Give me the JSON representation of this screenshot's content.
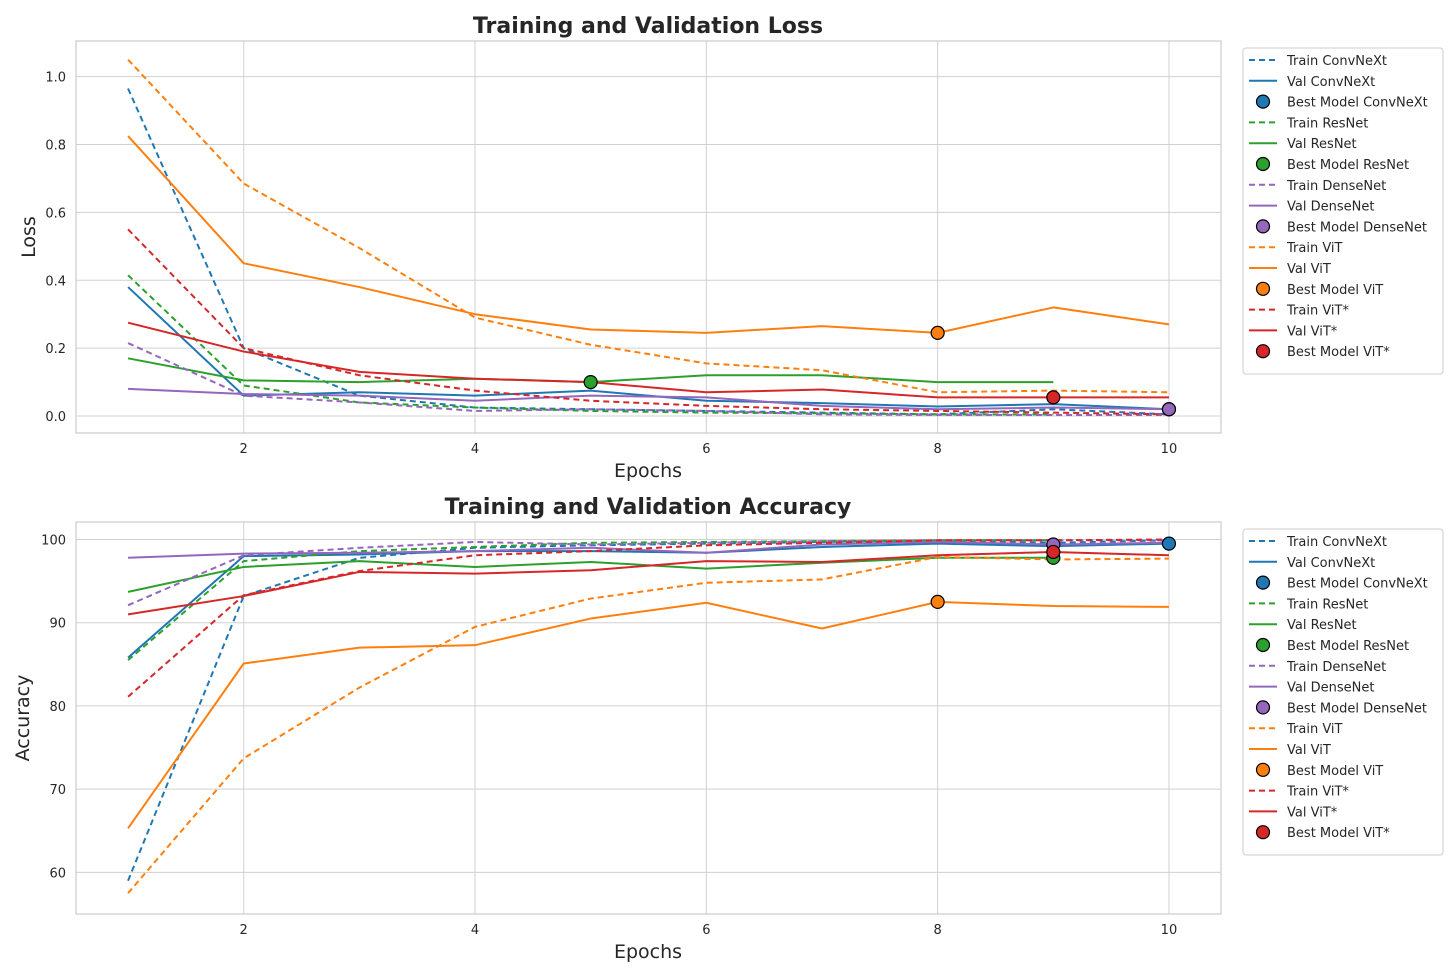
{
  "chart_data": [
    {
      "type": "line",
      "title": "Training and Validation Loss",
      "xlabel": "Epochs",
      "ylabel": "Loss",
      "xlim": [
        0.55,
        10.45
      ],
      "ylim": [
        -0.05,
        1.105
      ],
      "xticks": [
        2,
        4,
        6,
        8,
        10
      ],
      "yticks": [
        0.0,
        0.2,
        0.4,
        0.6,
        0.8,
        1.0
      ],
      "ytick_labels": [
        "0.0",
        "0.2",
        "0.4",
        "0.6",
        "0.8",
        "1.0"
      ],
      "grid": true,
      "legend_position": "outside right, top",
      "series": [
        {
          "name": "Train ConvNeXt",
          "model": "ConvNeXt",
          "style": "dashed",
          "color": "#1f77b4",
          "x": [
            1,
            2,
            3,
            4,
            5,
            6,
            7,
            8,
            9,
            10
          ],
          "y": [
            0.965,
            0.2,
            0.06,
            0.025,
            0.02,
            0.015,
            0.01,
            0.005,
            0.02,
            0.005
          ]
        },
        {
          "name": "Val ConvNeXt",
          "model": "ConvNeXt",
          "style": "solid",
          "color": "#1f77b4",
          "x": [
            1,
            2,
            3,
            4,
            5,
            6,
            7,
            8,
            9,
            10
          ],
          "y": [
            0.38,
            0.06,
            0.07,
            0.06,
            0.075,
            0.045,
            0.038,
            0.028,
            0.035,
            0.02
          ]
        },
        {
          "name": "Best Model ConvNeXt",
          "model": "ConvNeXt",
          "style": "marker",
          "color": "#1f77b4",
          "x": [
            10
          ],
          "y": [
            0.02
          ]
        },
        {
          "name": "Train ResNet",
          "model": "ResNet",
          "style": "dashed",
          "color": "#2ca02c",
          "x": [
            1,
            2,
            3,
            4,
            5,
            6,
            7,
            8,
            9
          ],
          "y": [
            0.415,
            0.09,
            0.04,
            0.025,
            0.015,
            0.01,
            0.008,
            0.005,
            0.005
          ]
        },
        {
          "name": "Val ResNet",
          "model": "ResNet",
          "style": "solid",
          "color": "#2ca02c",
          "x": [
            1,
            2,
            3,
            4,
            5,
            6,
            7,
            8,
            9
          ],
          "y": [
            0.17,
            0.105,
            0.1,
            0.11,
            0.1,
            0.12,
            0.12,
            0.1,
            0.1
          ]
        },
        {
          "name": "Best Model ResNet",
          "model": "ResNet",
          "style": "marker",
          "color": "#2ca02c",
          "x": [
            5
          ],
          "y": [
            0.1
          ]
        },
        {
          "name": "Train DenseNet",
          "model": "DenseNet",
          "style": "dashed",
          "color": "#9467bd",
          "x": [
            1,
            2,
            3,
            4,
            5,
            6,
            7,
            8,
            9,
            10
          ],
          "y": [
            0.215,
            0.06,
            0.04,
            0.015,
            0.02,
            0.015,
            0.005,
            0.003,
            0.003,
            0.003
          ]
        },
        {
          "name": "Val DenseNet",
          "model": "DenseNet",
          "style": "solid",
          "color": "#9467bd",
          "x": [
            1,
            2,
            3,
            4,
            5,
            6,
            7,
            8,
            9,
            10
          ],
          "y": [
            0.08,
            0.065,
            0.06,
            0.045,
            0.06,
            0.055,
            0.03,
            0.02,
            0.025,
            0.02
          ]
        },
        {
          "name": "Best Model DenseNet",
          "model": "DenseNet",
          "style": "marker",
          "color": "#9467bd",
          "x": [
            10
          ],
          "y": [
            0.02
          ]
        },
        {
          "name": "Train ViT",
          "model": "ViT",
          "style": "dashed",
          "color": "#ff7f0e",
          "x": [
            1,
            2,
            3,
            4,
            5,
            6,
            7,
            8,
            9,
            10
          ],
          "y": [
            1.05,
            0.685,
            0.495,
            0.29,
            0.21,
            0.155,
            0.135,
            0.07,
            0.075,
            0.07
          ]
        },
        {
          "name": "Val ViT",
          "model": "ViT",
          "style": "solid",
          "color": "#ff7f0e",
          "x": [
            1,
            2,
            3,
            4,
            5,
            6,
            7,
            8,
            9,
            10
          ],
          "y": [
            0.825,
            0.45,
            0.38,
            0.3,
            0.255,
            0.245,
            0.265,
            0.245,
            0.32,
            0.27
          ]
        },
        {
          "name": "Best Model ViT",
          "model": "ViT",
          "style": "marker",
          "color": "#ff7f0e",
          "x": [
            8
          ],
          "y": [
            0.245
          ]
        },
        {
          "name": "Train ViT*",
          "model": "ViT*",
          "style": "dashed",
          "color": "#d62728",
          "x": [
            1,
            2,
            3,
            4,
            5,
            6,
            7,
            8,
            9,
            10
          ],
          "y": [
            0.55,
            0.2,
            0.12,
            0.075,
            0.045,
            0.03,
            0.02,
            0.015,
            0.01,
            0.005
          ]
        },
        {
          "name": "Val ViT*",
          "model": "ViT*",
          "style": "solid",
          "color": "#d62728",
          "x": [
            1,
            2,
            3,
            4,
            5,
            6,
            7,
            8,
            9,
            10
          ],
          "y": [
            0.275,
            0.19,
            0.13,
            0.11,
            0.1,
            0.07,
            0.078,
            0.055,
            0.055,
            0.055
          ]
        },
        {
          "name": "Best Model ViT*",
          "model": "ViT*",
          "style": "marker",
          "color": "#d62728",
          "x": [
            9
          ],
          "y": [
            0.055
          ]
        }
      ]
    },
    {
      "type": "line",
      "title": "Training and Validation Accuracy",
      "xlabel": "Epochs",
      "ylabel": "Accuracy",
      "xlim": [
        0.55,
        10.45
      ],
      "ylim": [
        55,
        102.1
      ],
      "xticks": [
        2,
        4,
        6,
        8,
        10
      ],
      "yticks": [
        60,
        70,
        80,
        90,
        100
      ],
      "ytick_labels": [
        "60",
        "70",
        "80",
        "90",
        "100"
      ],
      "grid": true,
      "legend_position": "outside right, top",
      "series": [
        {
          "name": "Train ConvNeXt",
          "model": "ConvNeXt",
          "style": "dashed",
          "color": "#1f77b4",
          "x": [
            1,
            2,
            3,
            4,
            5,
            6,
            7,
            8,
            9,
            10
          ],
          "y": [
            59.0,
            93.2,
            97.8,
            99.0,
            99.3,
            99.5,
            99.7,
            99.9,
            99.6,
            99.9
          ]
        },
        {
          "name": "Val ConvNeXt",
          "model": "ConvNeXt",
          "style": "solid",
          "color": "#1f77b4",
          "x": [
            1,
            2,
            3,
            4,
            5,
            6,
            7,
            8,
            9,
            10
          ],
          "y": [
            85.8,
            98.0,
            98.2,
            98.6,
            98.6,
            98.4,
            99.1,
            99.5,
            99.2,
            99.5
          ]
        },
        {
          "name": "Best Model ConvNeXt",
          "model": "ConvNeXt",
          "style": "marker",
          "color": "#1f77b4",
          "x": [
            10
          ],
          "y": [
            99.5
          ]
        },
        {
          "name": "Train ResNet",
          "model": "ResNet",
          "style": "dashed",
          "color": "#2ca02c",
          "x": [
            1,
            2,
            3,
            4,
            5,
            6,
            7,
            8,
            9
          ],
          "y": [
            85.5,
            97.4,
            98.6,
            99.1,
            99.6,
            99.7,
            99.8,
            99.9,
            99.9
          ]
        },
        {
          "name": "Val ResNet",
          "model": "ResNet",
          "style": "solid",
          "color": "#2ca02c",
          "x": [
            1,
            2,
            3,
            4,
            5,
            6,
            7,
            8,
            9
          ],
          "y": [
            93.7,
            96.7,
            97.4,
            96.7,
            97.3,
            96.5,
            97.2,
            97.8,
            97.8
          ]
        },
        {
          "name": "Best Model ResNet",
          "model": "ResNet",
          "style": "marker",
          "color": "#2ca02c",
          "x": [
            9
          ],
          "y": [
            97.8
          ]
        },
        {
          "name": "Train DenseNet",
          "model": "DenseNet",
          "style": "dashed",
          "color": "#9467bd",
          "x": [
            1,
            2,
            3,
            4,
            5,
            6,
            7,
            8,
            9,
            10
          ],
          "y": [
            92.1,
            98.1,
            99.0,
            99.7,
            99.4,
            99.6,
            99.8,
            99.9,
            99.9,
            99.9
          ]
        },
        {
          "name": "Val DenseNet",
          "model": "DenseNet",
          "style": "solid",
          "color": "#9467bd",
          "x": [
            1,
            2,
            3,
            4,
            5,
            6,
            7,
            8,
            9,
            10
          ],
          "y": [
            97.8,
            98.3,
            98.4,
            98.6,
            99.0,
            98.4,
            99.4,
            99.7,
            99.4,
            99.6
          ]
        },
        {
          "name": "Best Model DenseNet",
          "model": "DenseNet",
          "style": "marker",
          "color": "#9467bd",
          "x": [
            9
          ],
          "y": [
            99.4
          ]
        },
        {
          "name": "Train ViT",
          "model": "ViT",
          "style": "dashed",
          "color": "#ff7f0e",
          "x": [
            1,
            2,
            3,
            4,
            5,
            6,
            7,
            8,
            9,
            10
          ],
          "y": [
            57.5,
            73.7,
            82.2,
            89.5,
            92.9,
            94.8,
            95.2,
            97.9,
            97.6,
            97.7
          ]
        },
        {
          "name": "Val ViT",
          "model": "ViT",
          "style": "solid",
          "color": "#ff7f0e",
          "x": [
            1,
            2,
            3,
            4,
            5,
            6,
            7,
            8,
            9,
            10
          ],
          "y": [
            65.3,
            85.1,
            87.0,
            87.3,
            90.5,
            92.4,
            89.3,
            92.5,
            92.0,
            91.9
          ]
        },
        {
          "name": "Best Model ViT",
          "model": "ViT",
          "style": "marker",
          "color": "#ff7f0e",
          "x": [
            8
          ],
          "y": [
            92.5
          ]
        },
        {
          "name": "Train ViT*",
          "model": "ViT*",
          "style": "dashed",
          "color": "#d62728",
          "x": [
            1,
            2,
            3,
            4,
            5,
            6,
            7,
            8,
            9,
            10
          ],
          "y": [
            81.1,
            93.3,
            96.2,
            98.1,
            98.6,
            99.3,
            99.6,
            99.9,
            99.9,
            100.0
          ]
        },
        {
          "name": "Val ViT*",
          "model": "ViT*",
          "style": "solid",
          "color": "#d62728",
          "x": [
            1,
            2,
            3,
            4,
            5,
            6,
            7,
            8,
            9,
            10
          ],
          "y": [
            91.0,
            93.2,
            96.1,
            95.9,
            96.3,
            97.4,
            97.3,
            98.1,
            98.5,
            98.1
          ]
        },
        {
          "name": "Best Model ViT*",
          "model": "ViT*",
          "style": "marker",
          "color": "#d62728",
          "x": [
            9
          ],
          "y": [
            98.5
          ]
        }
      ]
    }
  ]
}
